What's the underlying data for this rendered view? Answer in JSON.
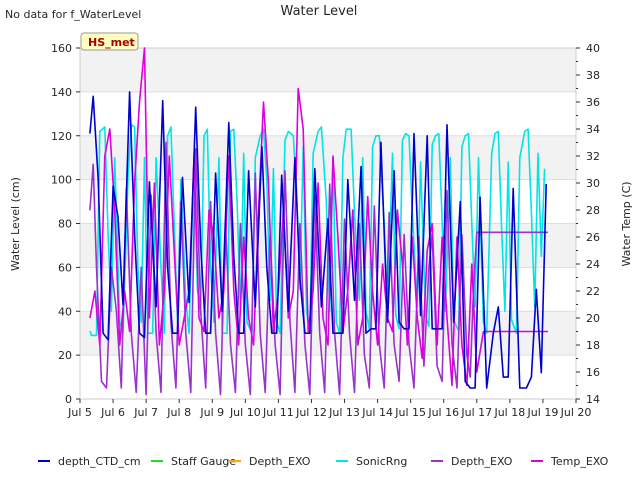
{
  "chart_data": {
    "type": "line",
    "title": "Water Level",
    "no_data_note": "No data for f_WaterLevel",
    "station_label": "HS_met",
    "xlabel": "",
    "ylabel": "Water Level (cm)",
    "y2label": "Water Temp (C)",
    "xlim": [
      5,
      20
    ],
    "ylim": [
      0,
      160
    ],
    "y2lim": [
      14,
      40
    ],
    "x_ticks": [
      {
        "value": 5,
        "label": "Jul 5"
      },
      {
        "value": 6,
        "label": "Jul 6"
      },
      {
        "value": 7,
        "label": "Jul 7"
      },
      {
        "value": 8,
        "label": "Jul 8"
      },
      {
        "value": 9,
        "label": "Jul 9"
      },
      {
        "value": 10,
        "label": "Jul 10"
      },
      {
        "value": 11,
        "label": "Jul 11"
      },
      {
        "value": 12,
        "label": "Jul 12"
      },
      {
        "value": 13,
        "label": "Jul 13"
      },
      {
        "value": 14,
        "label": "Jul 14"
      },
      {
        "value": 15,
        "label": "Jul 15"
      },
      {
        "value": 16,
        "label": "Jul 16"
      },
      {
        "value": 17,
        "label": "Jul 17"
      },
      {
        "value": 18,
        "label": "Jul 18"
      },
      {
        "value": 19,
        "label": "Jul 19"
      },
      {
        "value": 20,
        "label": "Jul 20"
      }
    ],
    "y_ticks": [
      0,
      20,
      40,
      60,
      80,
      100,
      120,
      140,
      160
    ],
    "y2_ticks": [
      14,
      16,
      18,
      20,
      22,
      24,
      26,
      28,
      30,
      32,
      34,
      36,
      38,
      40
    ],
    "legend": {
      "placement": "bottom",
      "entries": [
        {
          "name": "depth_CTD_cm",
          "color": "#0000cc"
        },
        {
          "name": "Staff Gauge",
          "color": "#22dd22"
        },
        {
          "name": "Depth_EXO",
          "color": "#ffa500"
        },
        {
          "name": "SonicRng",
          "color": "#00e5e5"
        },
        {
          "name": "Depth_EXO",
          "color": "#9933cc"
        },
        {
          "name": "Temp_EXO",
          "color": "#dd00dd"
        }
      ]
    },
    "series": [
      {
        "name": "depth_CTD_cm",
        "axis": "left",
        "color": "#0000cc",
        "x": [
          5.3,
          5.4,
          5.55,
          5.7,
          5.85,
          6.0,
          6.15,
          6.3,
          6.5,
          6.65,
          6.8,
          6.95,
          7.1,
          7.3,
          7.5,
          7.65,
          7.8,
          7.95,
          8.1,
          8.3,
          8.5,
          8.65,
          8.8,
          8.95,
          9.1,
          9.3,
          9.5,
          9.65,
          9.8,
          9.95,
          10.1,
          10.3,
          10.5,
          10.65,
          10.8,
          10.95,
          11.1,
          11.3,
          11.5,
          11.65,
          11.8,
          11.95,
          12.1,
          12.3,
          12.5,
          12.65,
          12.8,
          12.95,
          13.1,
          13.3,
          13.5,
          13.65,
          13.8,
          13.95,
          14.1,
          14.3,
          14.5,
          14.65,
          14.8,
          14.95,
          15.1,
          15.3,
          15.5,
          15.65,
          15.8,
          15.95,
          16.1,
          16.3,
          16.5,
          16.65,
          16.8,
          16.95,
          17.1,
          17.3,
          17.5,
          17.65,
          17.8,
          17.95,
          18.1,
          18.3,
          18.5,
          18.65,
          18.8,
          18.95,
          19.1
        ],
        "y": [
          121,
          138,
          100,
          30,
          27,
          97,
          83,
          43,
          140,
          75,
          30,
          28,
          99,
          42,
          136,
          60,
          30,
          30,
          101,
          44,
          133,
          70,
          30,
          30,
          103,
          40,
          126,
          65,
          30,
          30,
          104,
          42,
          115,
          60,
          30,
          30,
          102,
          40,
          110,
          55,
          30,
          30,
          105,
          42,
          82,
          30,
          30,
          30,
          100,
          45,
          106,
          30,
          32,
          32,
          117,
          35,
          104,
          35,
          32,
          32,
          121,
          38,
          120,
          32,
          32,
          32,
          125,
          35,
          90,
          8,
          5,
          5,
          92,
          5,
          30,
          42,
          10,
          10,
          96,
          5,
          5,
          10,
          50,
          12,
          98
        ]
      },
      {
        "name": "SonicRng",
        "axis": "left",
        "color": "#00e5e5",
        "x": [
          5.3,
          5.35,
          5.5,
          5.6,
          5.75,
          5.85,
          5.95,
          6.05,
          6.2,
          6.3,
          6.45,
          6.55,
          6.65,
          6.75,
          6.85,
          6.95,
          7.05,
          7.2,
          7.3,
          7.45,
          7.55,
          7.65,
          7.75,
          7.85,
          7.95,
          8.05,
          8.2,
          8.3,
          8.45,
          8.55,
          8.65,
          8.75,
          8.85,
          8.95,
          9.05,
          9.2,
          9.3,
          9.45,
          9.55,
          9.65,
          9.75,
          9.85,
          9.95,
          10.05,
          10.2,
          10.3,
          10.45,
          10.55,
          10.65,
          10.75,
          10.85,
          10.95,
          11.05,
          11.2,
          11.3,
          11.45,
          11.55,
          11.65,
          11.75,
          11.85,
          11.95,
          12.05,
          12.2,
          12.3,
          12.45,
          12.55,
          12.65,
          12.75,
          12.85,
          12.95,
          13.05,
          13.2,
          13.3,
          13.45,
          13.55,
          13.65,
          13.75,
          13.85,
          13.95,
          14.05,
          14.2,
          14.3,
          14.45,
          14.55,
          14.65,
          14.75,
          14.85,
          14.95,
          15.05,
          15.2,
          15.3,
          15.45,
          15.55,
          15.65,
          15.75,
          15.85,
          15.95,
          16.05,
          16.2,
          16.3,
          16.45,
          16.55,
          16.65,
          16.75,
          16.85,
          16.95,
          17.05,
          17.2,
          17.3,
          17.45,
          17.55,
          17.65,
          17.75,
          17.85,
          17.95,
          18.05,
          18.2,
          18.3,
          18.45,
          18.55,
          18.65,
          18.75,
          18.85,
          18.95,
          19.05
        ],
        "y": [
          31,
          29,
          29,
          122,
          124,
          75,
          40,
          110,
          35,
          30,
          100,
          125,
          124,
          60,
          35,
          110,
          30,
          30,
          110,
          60,
          30,
          120,
          124,
          80,
          35,
          100,
          45,
          30,
          112,
          50,
          40,
          120,
          123,
          60,
          35,
          110,
          30,
          30,
          122,
          123,
          90,
          40,
          112,
          35,
          30,
          110,
          120,
          123,
          100,
          45,
          105,
          35,
          30,
          118,
          122,
          120,
          95,
          50,
          115,
          40,
          30,
          112,
          122,
          124,
          90,
          40,
          110,
          35,
          30,
          110,
          123,
          123,
          85,
          45,
          110,
          40,
          32,
          115,
          120,
          120,
          80,
          40,
          112,
          38,
          32,
          118,
          121,
          120,
          85,
          42,
          108,
          38,
          33,
          116,
          120,
          121,
          82,
          40,
          110,
          36,
          31,
          115,
          120,
          121,
          80,
          42,
          110,
          35,
          30,
          112,
          121,
          122,
          78,
          40,
          108,
          36,
          30,
          110,
          122,
          123,
          85,
          42,
          112,
          65,
          105
        ]
      },
      {
        "name": "Depth_EXO",
        "axis": "left",
        "color": "#9933cc",
        "x": [
          5.3,
          5.4,
          5.5,
          5.65,
          5.8,
          5.95,
          6.1,
          6.25,
          6.4,
          6.55,
          6.7,
          6.85,
          7.0,
          7.15,
          7.3,
          7.45,
          7.6,
          7.75,
          7.9,
          8.05,
          8.2,
          8.35,
          8.5,
          8.65,
          8.8,
          8.95,
          9.1,
          9.25,
          9.4,
          9.55,
          9.7,
          9.85,
          10.0,
          10.15,
          10.3,
          10.45,
          10.6,
          10.75,
          10.9,
          11.05,
          11.2,
          11.35,
          11.5,
          11.65,
          11.8,
          11.95,
          12.1,
          12.25,
          12.4,
          12.55,
          12.7,
          12.85,
          13.0,
          13.15,
          13.3,
          13.45,
          13.6,
          13.75,
          13.9,
          14.05,
          14.2,
          14.35,
          14.5,
          14.65,
          14.8,
          14.95,
          15.1,
          15.25,
          15.4,
          15.55,
          15.65,
          15.8,
          15.95,
          16.1,
          16.25,
          16.4,
          16.55,
          16.7,
          16.8,
          16.9,
          17.0,
          17.2,
          17.5,
          18.0,
          18.5,
          19.0,
          19.15
        ],
        "y": [
          86,
          107,
          60,
          8,
          5,
          60,
          40,
          5,
          96,
          30,
          3,
          60,
          2,
          93,
          30,
          3,
          117,
          35,
          5,
          90,
          30,
          3,
          114,
          40,
          5,
          90,
          30,
          2,
          80,
          25,
          3,
          80,
          25,
          2,
          103,
          30,
          3,
          75,
          25,
          2,
          104,
          35,
          3,
          80,
          25,
          2,
          93,
          30,
          3,
          98,
          30,
          2,
          82,
          30,
          3,
          80,
          20,
          5,
          88,
          25,
          5,
          85,
          25,
          8,
          75,
          25,
          5,
          74,
          15,
          60,
          75,
          15,
          8,
          95,
          25,
          5,
          75,
          20,
          10,
          50,
          76,
          76,
          76,
          76,
          76,
          76,
          76
        ]
      },
      {
        "name": "Temp_EXO",
        "axis": "right",
        "color": "#dd00dd",
        "x": [
          5.3,
          5.45,
          5.6,
          5.75,
          5.9,
          6.05,
          6.2,
          6.35,
          6.5,
          6.65,
          6.8,
          6.95,
          7.1,
          7.25,
          7.4,
          7.55,
          7.7,
          7.85,
          8.0,
          8.15,
          8.3,
          8.45,
          8.6,
          8.75,
          8.9,
          9.05,
          9.2,
          9.35,
          9.5,
          9.65,
          9.8,
          9.95,
          10.1,
          10.25,
          10.4,
          10.55,
          10.7,
          10.85,
          11.0,
          11.15,
          11.3,
          11.45,
          11.6,
          11.75,
          11.9,
          12.05,
          12.2,
          12.35,
          12.5,
          12.65,
          12.8,
          12.95,
          13.1,
          13.25,
          13.4,
          13.55,
          13.7,
          13.85,
          14.0,
          14.15,
          14.3,
          14.45,
          14.6,
          14.75,
          14.9,
          15.05,
          15.2,
          15.35,
          15.5,
          15.65,
          15.8,
          15.95,
          16.1,
          16.25,
          16.4,
          16.55,
          16.7,
          16.85,
          17.0,
          17.2,
          17.5,
          18.0,
          18.5,
          19.0,
          19.15
        ],
        "y": [
          20,
          22,
          18,
          32,
          34,
          28,
          18,
          22,
          19,
          30,
          36,
          40,
          20,
          30,
          18,
          22,
          32,
          25,
          18,
          20,
          22,
          32,
          20,
          19,
          28,
          26,
          20,
          22,
          32,
          22,
          18,
          26,
          20,
          18,
          28,
          36,
          30,
          19,
          22,
          28,
          20,
          22,
          37,
          34,
          19,
          22,
          30,
          20,
          18,
          32,
          26,
          19,
          22,
          28,
          18,
          20,
          29,
          22,
          18,
          24,
          20,
          19,
          28,
          24,
          18,
          26,
          20,
          17,
          25,
          27,
          18,
          26,
          20,
          15,
          26,
          18,
          15,
          24,
          16,
          19,
          19,
          19,
          19,
          19,
          19
        ]
      }
    ]
  }
}
